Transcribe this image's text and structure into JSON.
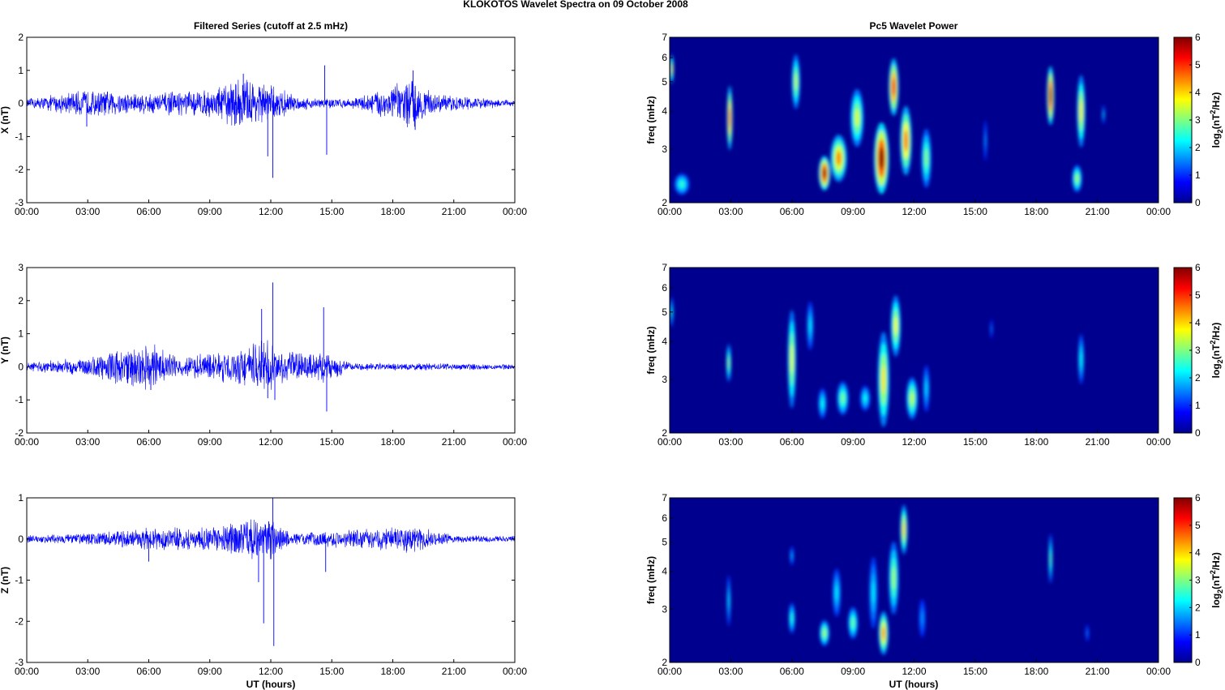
{
  "figure": {
    "title": "KLOKOTOS Wavelet Spectra on 09 October   2008",
    "left_title": "Filtered Series (cutoff at 2.5 mHz)",
    "right_title": "Pc5 Wavelet Power",
    "xlabel": "UT (hours)"
  },
  "x_ticks": [
    "00:00",
    "03:00",
    "06:00",
    "09:00",
    "12:00",
    "15:00",
    "18:00",
    "21:00",
    "00:00"
  ],
  "colors": {
    "trace": "#0000ff",
    "background_power": "#00008f"
  },
  "chart_data": [
    {
      "type": "line",
      "panel": "X",
      "ylabel": "X (nT)",
      "xlim": [
        0,
        24
      ],
      "ylim": [
        -3,
        2
      ],
      "yticks": [
        "-3",
        "-2",
        "-1",
        "0",
        "1",
        "2"
      ],
      "activity": [
        {
          "t": 0.0,
          "a": 0.15
        },
        {
          "t": 2.9,
          "a": 0.45
        },
        {
          "t": 6.0,
          "a": 0.35
        },
        {
          "t": 7.5,
          "a": 0.4
        },
        {
          "t": 9.0,
          "a": 0.45
        },
        {
          "t": 10.6,
          "a": 0.9
        },
        {
          "t": 12.0,
          "a": 0.6
        },
        {
          "t": 13.5,
          "a": 0.2
        },
        {
          "t": 16.0,
          "a": 0.15
        },
        {
          "t": 19.0,
          "a": 0.85
        },
        {
          "t": 20.0,
          "a": 0.3
        },
        {
          "t": 24.0,
          "a": 0.1
        }
      ],
      "spikes": [
        {
          "t": 2.95,
          "v": -0.7
        },
        {
          "t": 10.65,
          "v": 0.9
        },
        {
          "t": 11.85,
          "v": -1.6
        },
        {
          "t": 12.1,
          "v": -2.25
        },
        {
          "t": 14.65,
          "v": 1.15
        },
        {
          "t": 14.75,
          "v": -1.55
        },
        {
          "t": 19.0,
          "v": 1.0
        },
        {
          "t": 19.1,
          "v": -0.8
        }
      ]
    },
    {
      "type": "line",
      "panel": "Y",
      "ylabel": "Y (nT)",
      "xlim": [
        0,
        24
      ],
      "ylim": [
        -2,
        3
      ],
      "yticks": [
        "-2",
        "-1",
        "0",
        "1",
        "2",
        "3"
      ],
      "activity": [
        {
          "t": 0.0,
          "a": 0.15
        },
        {
          "t": 2.9,
          "a": 0.3
        },
        {
          "t": 6.0,
          "a": 0.8
        },
        {
          "t": 7.5,
          "a": 0.3
        },
        {
          "t": 10.5,
          "a": 0.6
        },
        {
          "t": 11.8,
          "a": 0.9
        },
        {
          "t": 12.3,
          "a": 0.5
        },
        {
          "t": 14.7,
          "a": 0.5
        },
        {
          "t": 16.0,
          "a": 0.12
        },
        {
          "t": 20.0,
          "a": 0.12
        },
        {
          "t": 24.0,
          "a": 0.08
        }
      ],
      "spikes": [
        {
          "t": 6.1,
          "v": -0.7
        },
        {
          "t": 11.55,
          "v": 1.75
        },
        {
          "t": 12.1,
          "v": 2.55
        },
        {
          "t": 11.85,
          "v": -0.95
        },
        {
          "t": 12.2,
          "v": -1.0
        },
        {
          "t": 14.6,
          "v": 1.8
        },
        {
          "t": 14.75,
          "v": -1.35
        }
      ]
    },
    {
      "type": "line",
      "panel": "Z",
      "ylabel": "Z (nT)",
      "xlim": [
        0,
        24
      ],
      "ylim": [
        -3,
        1
      ],
      "yticks": [
        "-3",
        "-2",
        "-1",
        "0",
        "1"
      ],
      "activity": [
        {
          "t": 0.0,
          "a": 0.1
        },
        {
          "t": 3.0,
          "a": 0.15
        },
        {
          "t": 6.0,
          "a": 0.3
        },
        {
          "t": 9.0,
          "a": 0.3
        },
        {
          "t": 11.0,
          "a": 0.55
        },
        {
          "t": 12.0,
          "a": 0.6
        },
        {
          "t": 13.0,
          "a": 0.15
        },
        {
          "t": 19.0,
          "a": 0.35
        },
        {
          "t": 21.0,
          "a": 0.1
        },
        {
          "t": 24.0,
          "a": 0.08
        }
      ],
      "spikes": [
        {
          "t": 11.65,
          "v": -2.05
        },
        {
          "t": 12.1,
          "v": 1.0
        },
        {
          "t": 12.15,
          "v": -2.6
        },
        {
          "t": 11.4,
          "v": -1.05
        },
        {
          "t": 14.7,
          "v": -0.8
        },
        {
          "t": 6.0,
          "v": -0.55
        }
      ]
    },
    {
      "type": "heatmap",
      "panel": "X",
      "ylabel": "freq (mHz)",
      "xlim": [
        0,
        24
      ],
      "ylim": [
        2,
        7
      ],
      "yscale": "log",
      "yticks": [
        "2",
        "3",
        "4",
        "5",
        "6",
        "7"
      ],
      "colorbar": {
        "label": "log2(nT^2/Hz)",
        "range": [
          0,
          6
        ],
        "ticks": [
          "0",
          "1",
          "2",
          "3",
          "4",
          "5",
          "6"
        ]
      },
      "blobs": [
        {
          "t": 0.1,
          "f": 5.5,
          "w": 0.12,
          "h": 1.5,
          "v": 3.5
        },
        {
          "t": 0.6,
          "f": 2.3,
          "w": 0.45,
          "h": 0.45,
          "v": 2.0
        },
        {
          "t": 2.95,
          "f": 3.8,
          "w": 0.17,
          "h": 2.2,
          "v": 4.8
        },
        {
          "t": 6.2,
          "f": 5.0,
          "w": 0.25,
          "h": 2.5,
          "v": 3.0
        },
        {
          "t": 7.6,
          "f": 2.5,
          "w": 0.35,
          "h": 0.8,
          "v": 5.8
        },
        {
          "t": 8.3,
          "f": 2.8,
          "w": 0.5,
          "h": 1.2,
          "v": 4.2
        },
        {
          "t": 9.2,
          "f": 3.8,
          "w": 0.4,
          "h": 2.0,
          "v": 3.2
        },
        {
          "t": 10.4,
          "f": 2.8,
          "w": 0.45,
          "h": 1.8,
          "v": 6.0
        },
        {
          "t": 11.0,
          "f": 4.8,
          "w": 0.3,
          "h": 2.5,
          "v": 5.2
        },
        {
          "t": 11.6,
          "f": 3.2,
          "w": 0.35,
          "h": 2.0,
          "v": 4.5
        },
        {
          "t": 12.6,
          "f": 2.8,
          "w": 0.3,
          "h": 1.5,
          "v": 2.6
        },
        {
          "t": 15.5,
          "f": 3.2,
          "w": 0.1,
          "h": 1.2,
          "v": 1.0
        },
        {
          "t": 18.7,
          "f": 4.5,
          "w": 0.22,
          "h": 2.4,
          "v": 5.8
        },
        {
          "t": 20.2,
          "f": 4.0,
          "w": 0.25,
          "h": 2.6,
          "v": 3.6
        },
        {
          "t": 20.0,
          "f": 2.4,
          "w": 0.3,
          "h": 0.6,
          "v": 2.8
        },
        {
          "t": 21.3,
          "f": 3.9,
          "w": 0.08,
          "h": 0.7,
          "v": 1.4
        }
      ]
    },
    {
      "type": "heatmap",
      "panel": "Y",
      "ylabel": "freq (mHz)",
      "xlim": [
        0,
        24
      ],
      "ylim": [
        2,
        7
      ],
      "yscale": "log",
      "yticks": [
        "2",
        "3",
        "4",
        "5",
        "6",
        "7"
      ],
      "colorbar": {
        "label": "log2(nT^2/Hz)",
        "range": [
          0,
          6
        ],
        "ticks": [
          "0",
          "1",
          "2",
          "3",
          "4",
          "5",
          "6"
        ]
      },
      "blobs": [
        {
          "t": 0.1,
          "f": 5.0,
          "w": 0.1,
          "h": 1.4,
          "v": 1.8
        },
        {
          "t": 2.9,
          "f": 3.4,
          "w": 0.15,
          "h": 1.2,
          "v": 2.7
        },
        {
          "t": 6.0,
          "f": 3.5,
          "w": 0.25,
          "h": 3.0,
          "v": 3.3
        },
        {
          "t": 6.9,
          "f": 4.5,
          "w": 0.2,
          "h": 2.0,
          "v": 1.6
        },
        {
          "t": 7.5,
          "f": 2.5,
          "w": 0.25,
          "h": 0.7,
          "v": 1.8
        },
        {
          "t": 8.5,
          "f": 2.6,
          "w": 0.35,
          "h": 0.8,
          "v": 2.5
        },
        {
          "t": 9.6,
          "f": 2.6,
          "w": 0.3,
          "h": 0.6,
          "v": 1.8
        },
        {
          "t": 10.5,
          "f": 3.0,
          "w": 0.35,
          "h": 2.5,
          "v": 3.6
        },
        {
          "t": 11.1,
          "f": 4.5,
          "w": 0.3,
          "h": 2.5,
          "v": 3.4
        },
        {
          "t": 11.9,
          "f": 2.6,
          "w": 0.35,
          "h": 1.0,
          "v": 3.0
        },
        {
          "t": 12.6,
          "f": 2.8,
          "w": 0.2,
          "h": 1.2,
          "v": 1.5
        },
        {
          "t": 15.8,
          "f": 4.4,
          "w": 0.08,
          "h": 0.8,
          "v": 0.8
        },
        {
          "t": 20.2,
          "f": 3.5,
          "w": 0.18,
          "h": 1.6,
          "v": 1.8
        }
      ]
    },
    {
      "type": "heatmap",
      "panel": "Z",
      "ylabel": "freq (mHz)",
      "xlim": [
        0,
        24
      ],
      "ylim": [
        2,
        7
      ],
      "yscale": "log",
      "yticks": [
        "2",
        "3",
        "4",
        "5",
        "6",
        "7"
      ],
      "colorbar": {
        "label": "log2(nT^2/Hz)",
        "range": [
          0,
          6
        ],
        "ticks": [
          "0",
          "1",
          "2",
          "3",
          "4",
          "5",
          "6"
        ]
      },
      "blobs": [
        {
          "t": 2.9,
          "f": 3.2,
          "w": 0.12,
          "h": 1.5,
          "v": 1.5
        },
        {
          "t": 6.0,
          "f": 2.8,
          "w": 0.2,
          "h": 0.8,
          "v": 2.0
        },
        {
          "t": 6.0,
          "f": 4.5,
          "w": 0.12,
          "h": 0.8,
          "v": 1.2
        },
        {
          "t": 7.6,
          "f": 2.5,
          "w": 0.3,
          "h": 0.6,
          "v": 2.8
        },
        {
          "t": 8.2,
          "f": 3.4,
          "w": 0.25,
          "h": 1.5,
          "v": 1.6
        },
        {
          "t": 9.0,
          "f": 2.7,
          "w": 0.3,
          "h": 0.8,
          "v": 2.4
        },
        {
          "t": 10.0,
          "f": 3.4,
          "w": 0.25,
          "h": 2.2,
          "v": 1.6
        },
        {
          "t": 10.5,
          "f": 2.5,
          "w": 0.3,
          "h": 1.0,
          "v": 4.2
        },
        {
          "t": 11.0,
          "f": 3.8,
          "w": 0.3,
          "h": 2.5,
          "v": 2.8
        },
        {
          "t": 11.5,
          "f": 5.5,
          "w": 0.22,
          "h": 2.5,
          "v": 3.8
        },
        {
          "t": 12.4,
          "f": 2.8,
          "w": 0.2,
          "h": 1.0,
          "v": 1.0
        },
        {
          "t": 18.7,
          "f": 4.4,
          "w": 0.12,
          "h": 2.0,
          "v": 2.3
        },
        {
          "t": 20.5,
          "f": 2.5,
          "w": 0.1,
          "h": 0.4,
          "v": 0.8
        }
      ]
    }
  ]
}
